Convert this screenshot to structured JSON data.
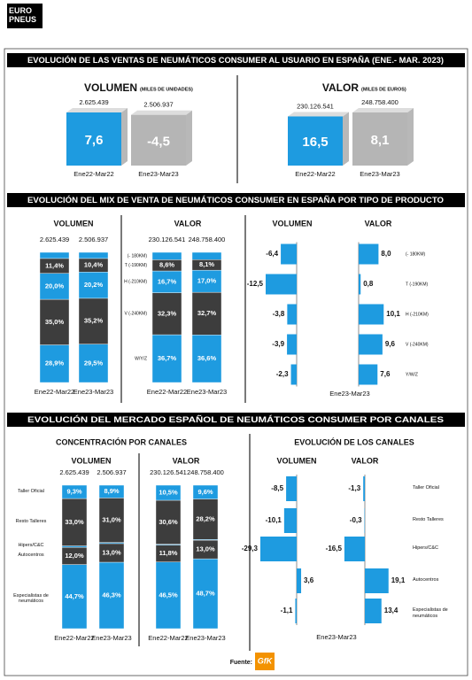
{
  "logo": "EURO PNEUS",
  "headers": [
    "EVOLUCIÓN DE LAS VENTAS DE NEUMÁTICOS CONSUMER AL USUARIO EN ESPAÑA (ENE.- MAR. 2023)",
    "EVOLUCIÓN DEL MIX DE VENTA DE NEUMÁTICOS CONSUMER EN ESPAÑA POR TIPO DE PRODUCTO",
    "EVOLUCIÓN DEL MERCADO ESPAÑOL DE NEUMÁTICOS CONSUMER POR CANALES"
  ],
  "concentration_title": "CONCENTRACIÓN POR CANALES",
  "source": "Fuente:",
  "source_logo": "GfK",
  "chart_data": [
    {
      "type": "bar",
      "title": "VOLUMEN",
      "subtitle": "(MILES DE UNIDADES)",
      "categories": [
        "Ene22-Mar22",
        "Ene23-Mar23"
      ],
      "values": [
        2625439,
        2506937
      ],
      "value_labels": [
        "2.625.439",
        "2.506.937"
      ],
      "colors": [
        "#1e9be0",
        "#b5b5b5"
      ],
      "growth": [
        7.6,
        -4.5
      ],
      "growth_labels": [
        "7,6",
        "-4,5"
      ]
    },
    {
      "type": "bar",
      "title": "VALOR",
      "subtitle": "(MILES DE EUROS)",
      "categories": [
        "Ene22-Mar22",
        "Ene23-Mar23"
      ],
      "values": [
        230126541,
        248758400
      ],
      "value_labels": [
        "230.126.541",
        "248.758.400"
      ],
      "colors": [
        "#1e9be0",
        "#b5b5b5"
      ],
      "growth": [
        16.5,
        8.1
      ],
      "growth_labels": [
        "16,5",
        "8,1"
      ]
    },
    {
      "type": "stacked_bar",
      "title": "VOLUMEN",
      "categories": [
        "Ene22-Mar22",
        "Ene23-Mar23"
      ],
      "totals": [
        {
          "value": 2625439,
          "label": "2.625.439"
        },
        {
          "value": 2506937,
          "label": "2.506.937"
        }
      ],
      "series": [
        {
          "color": "#1e9be0",
          "values": [
            4.7,
            4.7
          ],
          "value_labels": [
            null,
            null
          ]
        },
        {
          "color": "#3d3d3d",
          "values": [
            11.4,
            10.4
          ],
          "value_labels": [
            "11,4%",
            "10,4%"
          ]
        },
        {
          "color": "#1e9be0",
          "values": [
            20.0,
            20.2
          ],
          "value_labels": [
            "20,0%",
            "20,2%"
          ]
        },
        {
          "color": "#3d3d3d",
          "values": [
            35.0,
            35.2
          ],
          "value_labels": [
            "35,0%",
            "35,2%"
          ]
        },
        {
          "color": "#1e9be0",
          "values": [
            28.9,
            29.5
          ],
          "value_labels": [
            "28,9%",
            "29,5%"
          ]
        }
      ]
    },
    {
      "type": "stacked_bar",
      "title": "VALOR",
      "categories": [
        "Ene22-Mar22",
        "Ene23-Mar23"
      ],
      "totals": [
        {
          "value": 230126541,
          "label": "230.126.541"
        },
        {
          "value": 248758400,
          "label": "248.758.400"
        }
      ],
      "series": [
        {
          "name": "(- 180KM)",
          "color": "#1e9be0",
          "values": [
            5.7,
            5.6
          ],
          "value_labels": [
            null,
            null
          ]
        },
        {
          "name": "T (-190KM)",
          "color": "#3d3d3d",
          "values": [
            8.6,
            8.1
          ],
          "value_labels": [
            "8,6%",
            "8,1%"
          ]
        },
        {
          "name": "H (-210KM)",
          "color": "#1e9be0",
          "values": [
            16.7,
            17.0
          ],
          "value_labels": [
            "16,7%",
            "17,0%"
          ]
        },
        {
          "name": "V (-240KM)",
          "color": "#3d3d3d",
          "values": [
            32.3,
            32.7
          ],
          "value_labels": [
            "32,3%",
            "32,7%"
          ]
        },
        {
          "name": "W/Y/Z",
          "color": "#1e9be0",
          "values": [
            36.7,
            36.6
          ],
          "value_labels": [
            "36,7%",
            "36,6%"
          ]
        }
      ]
    },
    {
      "type": "diverging_bar",
      "x_label": "Ene23-Mar23",
      "categories": [
        "(- 180KM)",
        "T (-190KM)",
        "H (-210KM)",
        "V (-240KM)",
        "Y/W/Z"
      ],
      "series": [
        {
          "name": "VOLUMEN",
          "color": "#1e9be0",
          "values": [
            -6.4,
            -12.5,
            -3.8,
            -3.9,
            -2.3
          ],
          "value_labels": [
            "-6,4",
            "-12,5",
            "-3,8",
            "-3,9",
            "-2,3"
          ]
        },
        {
          "name": "VALOR",
          "color": "#1e9be0",
          "values": [
            8.0,
            0.8,
            10.1,
            9.6,
            7.6
          ],
          "value_labels": [
            "8,0",
            "0,8",
            "10,1",
            "9,6",
            "7,6"
          ]
        }
      ]
    },
    {
      "type": "stacked_bar",
      "title": "VOLUMEN",
      "categories": [
        "Ene22-Mar22",
        "Ene23-Mar23"
      ],
      "totals": [
        {
          "value": 2625439,
          "label": "2.625.439"
        },
        {
          "value": 2506937,
          "label": "2.506.937"
        }
      ],
      "series": [
        {
          "name": "Taller Oficial",
          "color": "#1e9be0",
          "values": [
            9.3,
            8.9
          ],
          "value_labels": [
            "9,3%",
            "8,9%"
          ]
        },
        {
          "name": "Resto Talleres",
          "color": "#3d3d3d",
          "values": [
            33.0,
            31.0
          ],
          "value_labels": [
            "33,0%",
            "31,0%"
          ]
        },
        {
          "name": "Hipers/C&C",
          "color": "#1e9be0",
          "values": [
            1.0,
            0.8
          ],
          "value_labels": [
            null,
            null
          ]
        },
        {
          "name": "Autocentros",
          "color": "#3d3d3d",
          "values": [
            12.0,
            13.0
          ],
          "value_labels": [
            "12,0%",
            "13,0%"
          ]
        },
        {
          "name": "Especialistas de neumáticos",
          "color": "#1e9be0",
          "values": [
            44.7,
            46.3
          ],
          "value_labels": [
            "44,7%",
            "46,3%"
          ]
        }
      ]
    },
    {
      "type": "stacked_bar",
      "title": "VALOR",
      "categories": [
        "Ene22-Mar22",
        "Ene23-Mar23"
      ],
      "totals": [
        {
          "value": 230126541,
          "label": "230.126.541"
        },
        {
          "value": 248758400,
          "label": "248.758.400"
        }
      ],
      "series": [
        {
          "color": "#1e9be0",
          "values": [
            10.5,
            9.6
          ],
          "value_labels": [
            "10,5%",
            "9,6%"
          ]
        },
        {
          "color": "#3d3d3d",
          "values": [
            30.6,
            28.2
          ],
          "value_labels": [
            "30,6%",
            "28,2%"
          ]
        },
        {
          "color": "#1e9be0",
          "values": [
            0.6,
            0.5
          ],
          "value_labels": [
            null,
            null
          ]
        },
        {
          "color": "#3d3d3d",
          "values": [
            11.8,
            13.0
          ],
          "value_labels": [
            "11,8%",
            "13,0%"
          ]
        },
        {
          "color": "#1e9be0",
          "values": [
            46.5,
            48.7
          ],
          "value_labels": [
            "46,5%",
            "48,7%"
          ]
        }
      ]
    },
    {
      "type": "diverging_bar",
      "title": "EVOLUCIÓN DE LOS CANALES",
      "x_label": "Ene23-Mar23",
      "categories": [
        "Taller Oficial",
        "Resto Talleres",
        "Hipers/C&C",
        "Autocentros",
        "Especialistas de neumáticos"
      ],
      "series": [
        {
          "name": "VOLUMEN",
          "color": "#1e9be0",
          "values": [
            -8.5,
            -10.1,
            -29.3,
            3.6,
            -1.1
          ],
          "value_labels": [
            "-8,5",
            "-10,1",
            "-29,3",
            "3,6",
            "-1,1"
          ]
        },
        {
          "name": "VALOR",
          "color": "#1e9be0",
          "values": [
            -1.3,
            -0.3,
            -16.5,
            19.1,
            13.4
          ],
          "value_labels": [
            "-1,3",
            "-0,3",
            "-16,5",
            "19,1",
            "13,4"
          ]
        }
      ]
    }
  ]
}
